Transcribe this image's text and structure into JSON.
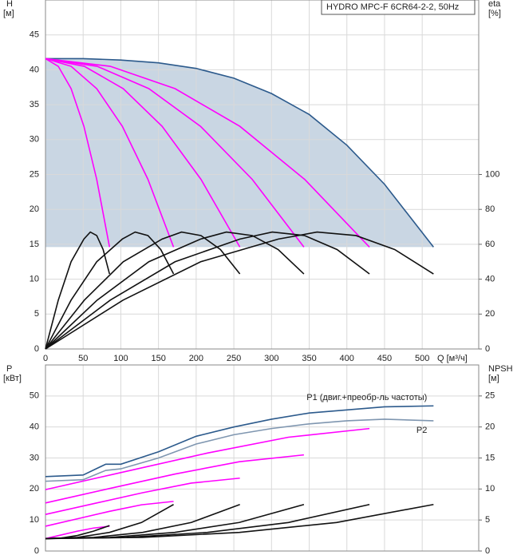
{
  "chart_data": [
    {
      "type": "line",
      "title": "HYDRO MPC-F 6CR64-2-2, 50Hz",
      "y_label": "H",
      "y_unit": "[м]",
      "y2_label": "eta",
      "y2_unit": "[%]",
      "x_label": "Q [м³/ч]",
      "xlim": [
        0,
        575
      ],
      "xticks": [
        0,
        50,
        100,
        150,
        200,
        250,
        300,
        350,
        400,
        450,
        500
      ],
      "ylim": [
        0,
        50
      ],
      "yticks": [
        0,
        5,
        10,
        15,
        20,
        25,
        30,
        35,
        40,
        45
      ],
      "y2lim": [
        0,
        200
      ],
      "y2ticks": [
        0,
        20,
        40,
        60,
        80,
        100
      ],
      "grid": true,
      "shade_color": "#c9d6e3",
      "series": [
        {
          "color": "#2c5a8c",
          "x": [
            0,
            50,
            100,
            150,
            200,
            250,
            300,
            350,
            400,
            450,
            515
          ],
          "values": [
            41.6,
            41.6,
            41.4,
            41,
            40.2,
            38.8,
            36.6,
            33.6,
            29.2,
            23.6,
            14.6
          ]
        },
        {
          "color": "#ff00ff",
          "x": [
            0,
            17,
            34,
            51,
            68,
            85
          ],
          "values": [
            41.6,
            40.5,
            37.3,
            31.9,
            24.3,
            14.6
          ]
        },
        {
          "color": "#ff00ff",
          "x": [
            0,
            34,
            68,
            102,
            136,
            170
          ],
          "values": [
            41.6,
            40.5,
            37.3,
            31.9,
            24.3,
            14.6
          ]
        },
        {
          "color": "#ff00ff",
          "x": [
            0,
            51.6,
            103.2,
            154.8,
            206.4,
            258
          ],
          "values": [
            41.6,
            40.5,
            37.3,
            31.9,
            24.3,
            14.6
          ]
        },
        {
          "color": "#ff00ff",
          "x": [
            0,
            68.6,
            137.2,
            205.8,
            274.4,
            343
          ],
          "values": [
            41.6,
            40.5,
            37.3,
            31.9,
            24.3,
            14.6
          ]
        },
        {
          "color": "#ff00ff",
          "x": [
            0,
            86,
            172,
            258,
            344,
            430
          ],
          "values": [
            41.6,
            40.5,
            37.3,
            31.9,
            24.3,
            14.6
          ]
        },
        {
          "color": "#111111",
          "axis": "y2",
          "x": [
            0,
            17,
            34,
            51,
            59.5,
            68,
            76.5,
            85
          ],
          "values": [
            0,
            28,
            50,
            63,
            67,
            65,
            57,
            43
          ]
        },
        {
          "color": "#111111",
          "axis": "y2",
          "x": [
            0,
            34,
            68,
            102,
            119,
            136,
            153,
            170
          ],
          "values": [
            0,
            28,
            50,
            63,
            67,
            65,
            57,
            43
          ]
        },
        {
          "color": "#111111",
          "axis": "y2",
          "x": [
            0,
            51.6,
            103.2,
            154.8,
            180.6,
            206.4,
            232.2,
            258
          ],
          "values": [
            0,
            28,
            50,
            63,
            67,
            65,
            57,
            43
          ]
        },
        {
          "color": "#111111",
          "axis": "y2",
          "x": [
            0,
            68.6,
            137.2,
            205.8,
            240.1,
            274.4,
            308.7,
            343
          ],
          "values": [
            0,
            28,
            50,
            63,
            67,
            65,
            57,
            43
          ]
        },
        {
          "color": "#111111",
          "axis": "y2",
          "x": [
            0,
            86,
            172,
            258,
            301,
            344,
            387,
            430
          ],
          "values": [
            0,
            28,
            50,
            63,
            67,
            65,
            57,
            43
          ]
        },
        {
          "color": "#111111",
          "axis": "y2",
          "x": [
            0,
            103,
            206,
            309,
            360.5,
            412,
            463.5,
            515
          ],
          "values": [
            0,
            28,
            50,
            63,
            67,
            65,
            57,
            43
          ]
        }
      ]
    },
    {
      "type": "line",
      "y_label": "P",
      "y_unit": "[кВт]",
      "y2_label": "NPSH",
      "y2_unit": "[м]",
      "xlim": [
        0,
        575
      ],
      "xticks": [
        0,
        50,
        100,
        150,
        200,
        250,
        300,
        350,
        400,
        450,
        500
      ],
      "ylim": [
        0,
        60
      ],
      "yticks": [
        0,
        10,
        20,
        30,
        40,
        50
      ],
      "y2lim": [
        0,
        30
      ],
      "y2ticks": [
        0,
        5,
        10,
        15,
        20,
        25
      ],
      "grid": true,
      "annotations": [
        "P1 (двиг.+преобр-ль частоты)",
        "P2"
      ],
      "series": [
        {
          "color": "#2c5a8c",
          "x": [
            0,
            50,
            80,
            100,
            150,
            200,
            250,
            300,
            350,
            400,
            450,
            515
          ],
          "values": [
            24,
            24.5,
            28,
            28,
            32,
            37,
            40,
            42.5,
            44.5,
            45.5,
            46.5,
            46.8
          ]
        },
        {
          "color": "#7f96b0",
          "x": [
            0,
            50,
            80,
            100,
            150,
            200,
            250,
            300,
            350,
            400,
            450,
            515
          ],
          "values": [
            22.5,
            23,
            26,
            26.5,
            30,
            34.5,
            37.5,
            39.5,
            41,
            42,
            42.5,
            42
          ]
        },
        {
          "color": "#ff00ff",
          "x": [
            0,
            21.25,
            42.5,
            63.75,
            85
          ],
          "values": [
            4,
            5.2,
            6.4,
            7.4,
            8
          ]
        },
        {
          "color": "#ff00ff",
          "x": [
            0,
            42.5,
            85,
            127.5,
            170
          ],
          "values": [
            8,
            10.4,
            12.8,
            14.9,
            16
          ]
        },
        {
          "color": "#ff00ff",
          "x": [
            0,
            64.5,
            129,
            193.5,
            258
          ],
          "values": [
            11.8,
            15.3,
            18.8,
            21.9,
            23.5
          ]
        },
        {
          "color": "#ff00ff",
          "x": [
            0,
            85.75,
            171.5,
            257.25,
            343
          ],
          "values": [
            15.5,
            20.2,
            24.8,
            28.8,
            31
          ]
        },
        {
          "color": "#ff00ff",
          "x": [
            0,
            107.5,
            215,
            322.5,
            430
          ],
          "values": [
            19.8,
            25.7,
            31.6,
            36.7,
            39.5
          ]
        },
        {
          "color": "#111111",
          "axis": "y2",
          "x": [
            0,
            21.25,
            42.5,
            63.75,
            85
          ],
          "values": [
            2,
            2.1,
            2.5,
            3.2,
            4.1
          ]
        },
        {
          "color": "#111111",
          "axis": "y2",
          "x": [
            0,
            42.5,
            85,
            127.5,
            170
          ],
          "values": [
            2,
            2.2,
            3,
            4.6,
            7.5
          ]
        },
        {
          "color": "#111111",
          "axis": "y2",
          "x": [
            0,
            64.5,
            129,
            193.5,
            258
          ],
          "values": [
            2,
            2.2,
            3,
            4.6,
            7.5
          ]
        },
        {
          "color": "#111111",
          "axis": "y2",
          "x": [
            0,
            85.75,
            171.5,
            257.25,
            343
          ],
          "values": [
            2,
            2.2,
            3,
            4.6,
            7.5
          ]
        },
        {
          "color": "#111111",
          "axis": "y2",
          "x": [
            0,
            107.5,
            215,
            322.5,
            430
          ],
          "values": [
            2,
            2.2,
            3,
            4.6,
            7.5
          ]
        },
        {
          "color": "#111111",
          "axis": "y2",
          "x": [
            0,
            128.75,
            257.5,
            386.25,
            515
          ],
          "values": [
            2,
            2.2,
            3,
            4.6,
            7.5
          ]
        }
      ]
    }
  ]
}
